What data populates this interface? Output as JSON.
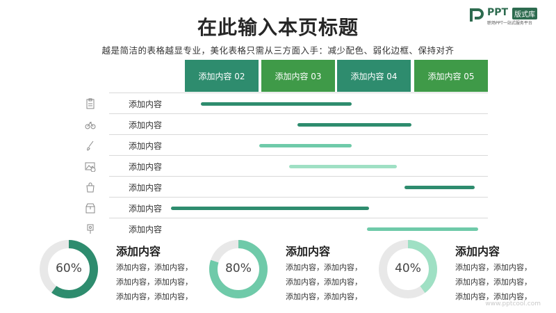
{
  "slide": {
    "title": "在此输入本页标题",
    "subtitle": "越是简洁的表格越显专业，美化表格只需从三方面入手：减少配色、弱化边框、保持对齐"
  },
  "logo": {
    "brand": "PPT",
    "tag": "版式库",
    "slogan": "职场PPT一站式服务平台"
  },
  "table": {
    "headers": [
      {
        "label": "添加内容 02",
        "color": "#2e8c6e"
      },
      {
        "label": "添加内容 03",
        "color": "#3f9a48"
      },
      {
        "label": "添加内容 04",
        "color": "#2e8c6e"
      },
      {
        "label": "添加内容 05",
        "color": "#3f9a48"
      }
    ],
    "rows": [
      {
        "label": "添加内容",
        "icon": "clipboard-icon",
        "bar": {
          "start": 0.21,
          "end": 2.2,
          "color": "#2e8c6e"
        }
      },
      {
        "label": "添加内容",
        "icon": "bicycle-icon",
        "bar": {
          "start": 1.49,
          "end": 2.99,
          "color": "#2e8c6e"
        }
      },
      {
        "label": "添加内容",
        "icon": "brush-icon",
        "bar": {
          "start": 0.98,
          "end": 2.2,
          "color": "#6fcaa9"
        }
      },
      {
        "label": "添加内容",
        "icon": "image-icon",
        "bar": {
          "start": 1.38,
          "end": 2.8,
          "color": "#9fe0c4"
        }
      },
      {
        "label": "添加内容",
        "icon": "bag-icon",
        "bar": {
          "start": 2.9,
          "end": 3.83,
          "color": "#2e8c6e"
        }
      },
      {
        "label": "添加内容",
        "icon": "box-icon",
        "bar": {
          "start": -0.18,
          "end": 2.43,
          "color": "#2e8c6e"
        }
      },
      {
        "label": "添加内容",
        "icon": "pin-icon",
        "bar": {
          "start": 2.4,
          "end": 3.87,
          "color": "#6fcaa9"
        }
      }
    ]
  },
  "cards": [
    {
      "percent": 60,
      "label": "60%",
      "color": "#2e8c6e",
      "title": "添加内容",
      "lines": [
        "添加内容，添加内容，",
        "添加内容，添加内容，",
        "添加内容，添加内容，"
      ]
    },
    {
      "percent": 80,
      "label": "80%",
      "color": "#6fcaa9",
      "title": "添加内容",
      "lines": [
        "添加内容，添加内容，",
        "添加内容，添加内容，",
        "添加内容，添加内容，"
      ]
    },
    {
      "percent": 40,
      "label": "40%",
      "color": "#9fe0c4",
      "title": "添加内容",
      "lines": [
        "添加内容，添加内容，",
        "添加内容，添加内容，",
        "添加内容，添加内容，"
      ]
    }
  ],
  "watermark": "www.pptcool.com"
}
